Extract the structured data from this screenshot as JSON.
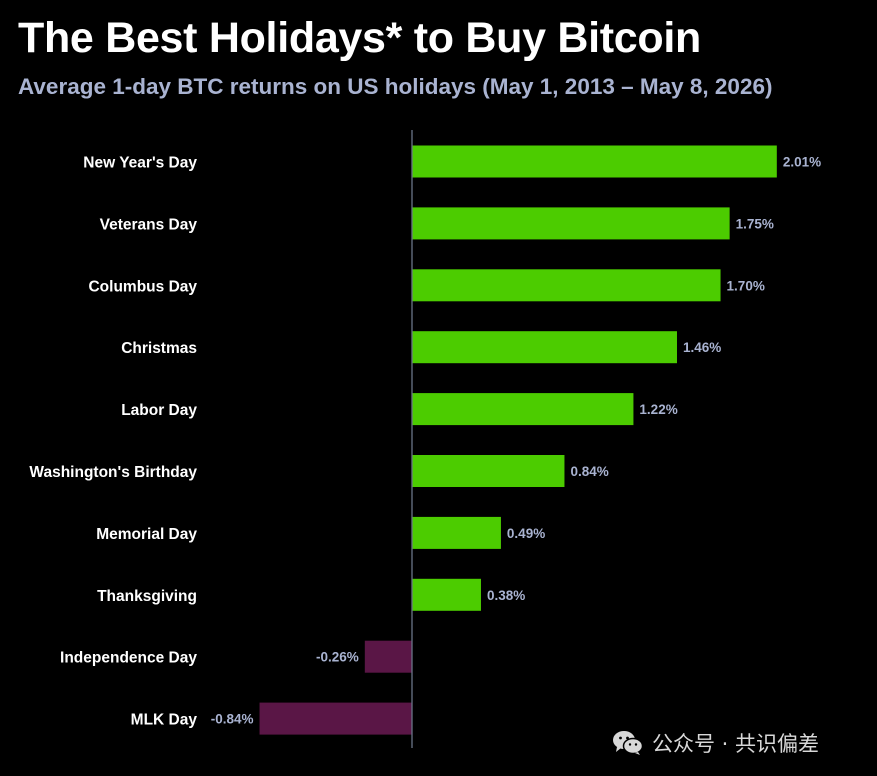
{
  "title": "The Best Holidays* to Buy Bitcoin",
  "subtitle": "Average 1-day BTC returns on US holidays (May 1, 2013 – May 8, 2026)",
  "watermark": {
    "text": "公众号 · 共识偏差",
    "icon": "wechat-icon"
  },
  "colors": {
    "positive": "#4ccc00",
    "negative": "#5a1646",
    "label": "#ffffff",
    "value_label": "#a9b3d1",
    "axis": "#6a7488",
    "background": "#000000"
  },
  "chart_data": {
    "type": "bar",
    "orientation": "horizontal",
    "categories": [
      "New Year's Day",
      "Veterans Day",
      "Columbus Day",
      "Christmas",
      "Labor Day",
      "Washington's Birthday",
      "Memorial Day",
      "Thanksgiving",
      "Independence Day",
      "MLK Day"
    ],
    "values": [
      2.01,
      1.75,
      1.7,
      1.46,
      1.22,
      0.84,
      0.49,
      0.38,
      -0.26,
      -0.84
    ],
    "value_labels": [
      "2.01%",
      "1.75%",
      "1.70%",
      "1.46%",
      "1.22%",
      "0.84%",
      "0.49%",
      "0.38%",
      "-0.26%",
      "-0.84%"
    ],
    "unit": "%",
    "xlim": [
      -0.84,
      2.01
    ],
    "grid": false,
    "legend": false
  }
}
